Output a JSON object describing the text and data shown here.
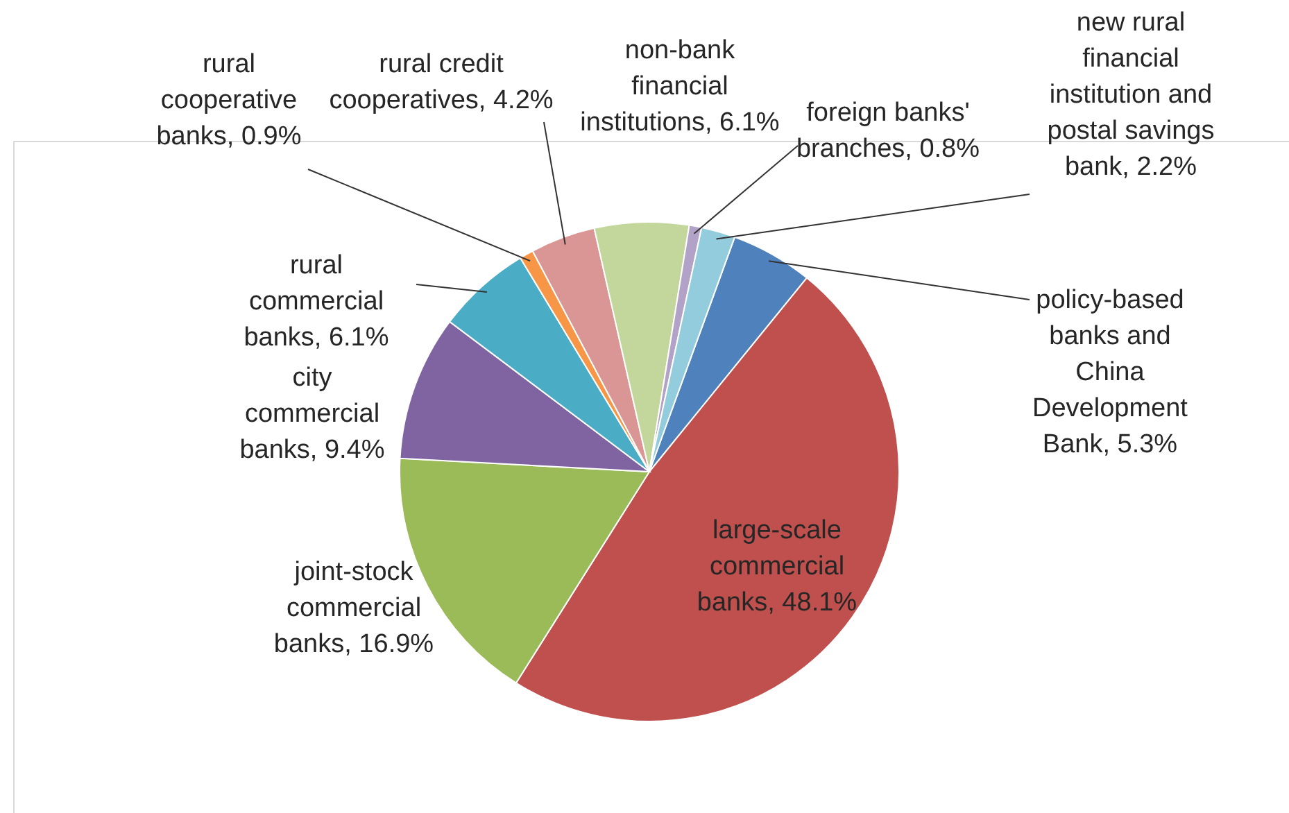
{
  "chart_data": {
    "type": "pie",
    "categories": [
      "policy-based banks and China Development Bank",
      "large-scale commercial banks",
      "joint-stock commercial banks",
      "city commercial banks",
      "rural commercial banks",
      "rural cooperative banks",
      "rural credit cooperatives",
      "non-bank financial institutions",
      "foreign banks' branches",
      "new rural financial institution and postal savings bank"
    ],
    "values": [
      5.3,
      48.1,
      16.9,
      9.4,
      6.1,
      0.9,
      4.2,
      6.1,
      0.8,
      2.2
    ],
    "value_labels": [
      "5.3%",
      "48.1%",
      "16.9%",
      "9.4%",
      "6.1%",
      "0.9%",
      "4.2%",
      "6.1%",
      "0.8%",
      "2.2%"
    ],
    "colors": [
      "#4f81bd",
      "#c0504d",
      "#9bbb59",
      "#8064a2",
      "#4bacc6",
      "#f79646",
      "#d99694",
      "#c3d69b",
      "#b3a2c7",
      "#93cddd"
    ]
  }
}
